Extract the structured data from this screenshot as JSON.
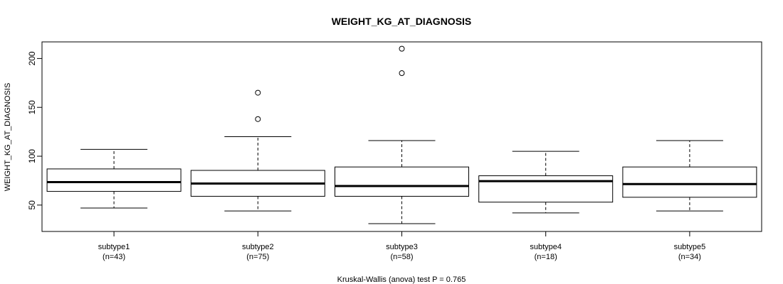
{
  "chart_data": {
    "type": "box",
    "title": "WEIGHT_KG_AT_DIAGNOSIS",
    "ylabel": "WEIGHT_KG_AT_DIAGNOSIS",
    "xlabel": "Kruskal-Wallis (anova) test P = 0.765",
    "ylim": [
      23,
      217
    ],
    "yticks": [
      50,
      100,
      150,
      200
    ],
    "groups": [
      {
        "name": "subtype1",
        "n_label": "(n=43)",
        "whisker_low": 47,
        "q1": 64,
        "median": 73.5,
        "q3": 87,
        "whisker_high": 107,
        "outliers": []
      },
      {
        "name": "subtype2",
        "n_label": "(n=75)",
        "whisker_low": 44,
        "q1": 59,
        "median": 72,
        "q3": 85.5,
        "whisker_high": 120,
        "outliers": [
          138,
          165
        ]
      },
      {
        "name": "subtype3",
        "n_label": "(n=58)",
        "whisker_low": 31,
        "q1": 59,
        "median": 69.5,
        "q3": 89,
        "whisker_high": 116,
        "outliers": [
          185,
          210
        ]
      },
      {
        "name": "subtype4",
        "n_label": "(n=18)",
        "whisker_low": 42,
        "q1": 53,
        "median": 74.5,
        "q3": 80,
        "whisker_high": 105,
        "outliers": []
      },
      {
        "name": "subtype5",
        "n_label": "(n=34)",
        "whisker_low": 44,
        "q1": 58,
        "median": 71.5,
        "q3": 89,
        "whisker_high": 116,
        "outliers": []
      }
    ]
  }
}
